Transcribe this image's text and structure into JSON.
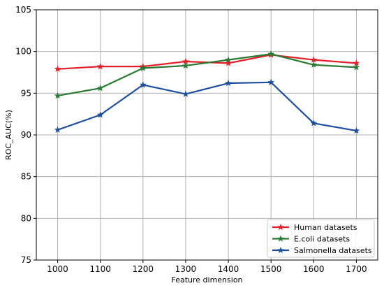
{
  "chart_data": {
    "type": "line",
    "title": "",
    "xlabel": "Feature dimension",
    "ylabel": "ROC_AUC(%)",
    "x": [
      1000,
      1100,
      1200,
      1300,
      1400,
      1500,
      1600,
      1700
    ],
    "x_tick_labels": [
      "1000",
      "1100",
      "1200",
      "1300",
      "1400",
      "1500",
      "1600",
      "1700"
    ],
    "xlim": [
      950,
      1750
    ],
    "ylim": [
      75,
      105
    ],
    "y_ticks": [
      75,
      80,
      85,
      90,
      95,
      100,
      105
    ],
    "grid": true,
    "legend_position": "bottom-right",
    "series": [
      {
        "name": "Human datasets",
        "color": "#e3202a",
        "marker": "star",
        "values": [
          97.9,
          98.2,
          98.2,
          98.8,
          98.6,
          99.6,
          99.0,
          98.6
        ]
      },
      {
        "name": "E.coli datasets",
        "color": "#2b7a33",
        "marker": "star",
        "values": [
          94.7,
          95.6,
          98.0,
          98.3,
          99.0,
          99.7,
          98.4,
          98.1
        ]
      },
      {
        "name": "Salmonella datasets",
        "color": "#1f4f9c",
        "marker": "star",
        "values": [
          90.6,
          92.4,
          96.0,
          94.9,
          96.2,
          96.3,
          91.4,
          90.5
        ]
      }
    ]
  }
}
